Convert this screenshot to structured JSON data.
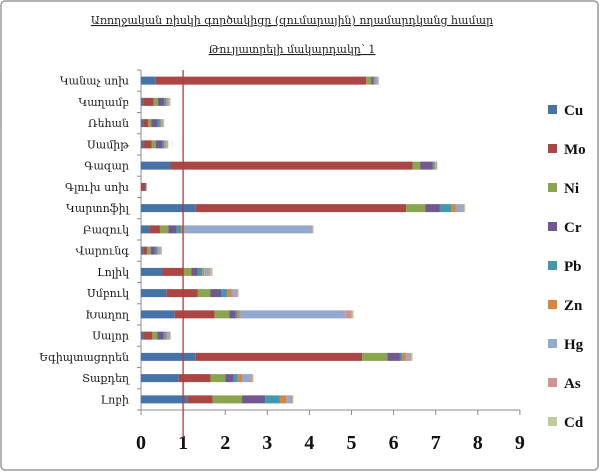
{
  "chart_data": {
    "type": "bar",
    "orientation": "horizontal",
    "stacked": true,
    "title": "Առողջական ռիսկի գործակիցը (զումարային) ողամարդկանց համար",
    "subtitle": "Թույլատրելի մակարդակը՝ 1",
    "xlim": [
      0,
      9
    ],
    "x_ticks": [
      "0",
      "1",
      "2",
      "3",
      "4",
      "5",
      "6",
      "7",
      "8",
      "9"
    ],
    "reference_line": 1,
    "grid": false,
    "legend_position": "right",
    "categories": [
      "Կանաչ սոխ",
      "Կաղամբ",
      "Ռեհան",
      "Սամիթ",
      "Գազար",
      "Գլուխ սոխ",
      "Կարտոֆիլ",
      "Բազուկ",
      "Վարունգ",
      "Լոլիկ",
      "Սմբուկ",
      "Խաղող",
      "Սալոր",
      "Եգիպտացորեն",
      "Տաքդեղ",
      "Լոբի"
    ],
    "series": [
      {
        "name": "Cu",
        "color": "#4572A7",
        "values": [
          0.35,
          0.05,
          0.05,
          0.05,
          0.7,
          0.0,
          1.3,
          0.2,
          0.05,
          0.5,
          0.6,
          0.8,
          0.05,
          1.3,
          0.9,
          1.1
        ]
      },
      {
        "name": "Mo",
        "color": "#AA4643",
        "values": [
          5.0,
          0.25,
          0.12,
          0.2,
          5.75,
          0.1,
          5.0,
          0.25,
          0.1,
          0.5,
          0.75,
          0.95,
          0.22,
          3.95,
          0.75,
          0.6
        ]
      },
      {
        "name": "Ni",
        "color": "#89A54E",
        "values": [
          0.12,
          0.1,
          0.08,
          0.1,
          0.18,
          0.0,
          0.45,
          0.2,
          0.08,
          0.2,
          0.3,
          0.35,
          0.12,
          0.6,
          0.35,
          0.7
        ]
      },
      {
        "name": "Cr",
        "color": "#71588F",
        "values": [
          0.05,
          0.15,
          0.15,
          0.15,
          0.3,
          0.03,
          0.35,
          0.2,
          0.1,
          0.15,
          0.25,
          0.15,
          0.15,
          0.3,
          0.2,
          0.55
        ]
      },
      {
        "name": "Pb",
        "color": "#4198AF",
        "values": [
          0.03,
          0.05,
          0.05,
          0.05,
          0.03,
          0.0,
          0.28,
          0.1,
          0.05,
          0.1,
          0.15,
          0.05,
          0.05,
          0.05,
          0.1,
          0.35
        ]
      },
      {
        "name": "Zn",
        "color": "#DB843D",
        "values": [
          0.02,
          0.03,
          0.03,
          0.03,
          0.03,
          0.0,
          0.1,
          0.05,
          0.03,
          0.05,
          0.1,
          0.05,
          0.03,
          0.1,
          0.1,
          0.15
        ]
      },
      {
        "name": "Hg",
        "color": "#93A9CF",
        "values": [
          0.05,
          0.03,
          0.03,
          0.03,
          0.03,
          0.0,
          0.15,
          3.05,
          0.05,
          0.1,
          0.1,
          2.5,
          0.05,
          0.07,
          0.2,
          0.1
        ]
      },
      {
        "name": "As",
        "color": "#D19392",
        "values": [
          0.02,
          0.02,
          0.02,
          0.02,
          0.01,
          0.0,
          0.05,
          0.03,
          0.02,
          0.05,
          0.05,
          0.15,
          0.02,
          0.05,
          0.05,
          0.05
        ]
      },
      {
        "name": "Cd",
        "color": "#B9CD96",
        "values": [
          0.01,
          0.02,
          0.02,
          0.02,
          0.01,
          0.0,
          0.02,
          0.02,
          0.02,
          0.05,
          0.02,
          0.05,
          0.02,
          0.03,
          0.02,
          0.02
        ]
      }
    ]
  }
}
